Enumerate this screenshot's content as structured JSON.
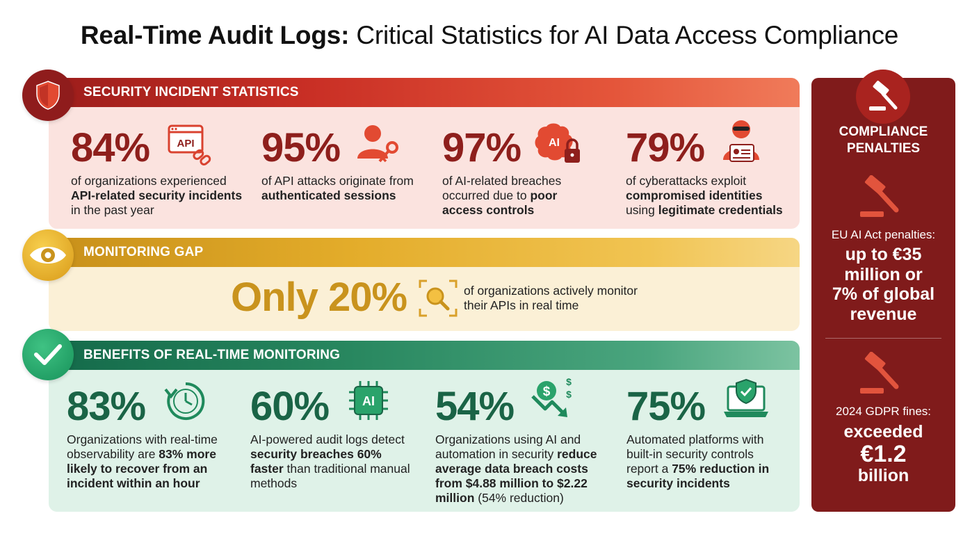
{
  "title": {
    "bold": "Real-Time Audit Logs:",
    "rest": " Critical Statistics for AI Data Access Compliance"
  },
  "security": {
    "heading": "SECURITY INCIDENT STATISTICS",
    "stats": [
      {
        "value": "84%",
        "icon": "api-link-icon",
        "pre": "of organizations experienced ",
        "bold": "API-related security incidents",
        "post": " in the past year"
      },
      {
        "value": "95%",
        "icon": "user-key-icon",
        "pre": "of API attacks originate from ",
        "bold": "authenticated sessions",
        "post": ""
      },
      {
        "value": "97%",
        "icon": "ai-brain-lock-icon",
        "pre": "of AI-related breaches occurred due to ",
        "bold": "poor access controls",
        "post": ""
      },
      {
        "value": "79%",
        "icon": "hacker-id-card-icon",
        "pre": "of cyberattacks exploit ",
        "bold": "compromised identities",
        "post": " using ",
        "bold2": "legitimate credentials"
      }
    ]
  },
  "monitoring": {
    "heading": "MONITORING GAP",
    "value": "Only 20%",
    "icon": "magnify-focus-icon",
    "line1": "of organizations actively monitor",
    "line2": "their APIs in real time"
  },
  "benefits": {
    "heading": "BENEFITS OF REAL-TIME MONITORING",
    "stats": [
      {
        "value": "83%",
        "icon": "clock-refresh-icon",
        "pre": "Organizations with real-time observability are ",
        "bold": "83% more likely to recover from an incident within an hour",
        "post": ""
      },
      {
        "value": "60%",
        "icon": "ai-chip-icon",
        "pre": "AI-powered audit logs detect ",
        "bold": "security breaches 60% faster",
        "post": " than traditional manual methods"
      },
      {
        "value": "54%",
        "icon": "money-down-icon",
        "pre": "Organizations using AI and automation in security ",
        "bold": "reduce average data breach costs from $4.88 million to $2.22 million",
        "post": " (54% reduction)"
      },
      {
        "value": "75%",
        "icon": "laptop-shield-icon",
        "pre": "Automated platforms with built-in security controls report a ",
        "bold": "75% reduction in security incidents",
        "post": ""
      }
    ]
  },
  "penalties": {
    "heading_line1": "COMPLIANCE",
    "heading_line2": "PENALTIES",
    "eu_label": "EU AI Act penalties:",
    "eu_line1": "up to €35",
    "eu_line2": "million or",
    "eu_line3": "7% of global",
    "eu_line4": "revenue",
    "gdpr_label": "2024 GDPR fines:",
    "gdpr_line1": "exceeded",
    "gdpr_line2": "€1.2",
    "gdpr_line3": "billion"
  },
  "colors": {
    "security_accent": "#8e1f1c",
    "monitoring_accent": "#c9931d",
    "benefits_accent": "#1a6446",
    "penalties_panel": "#801b1b"
  }
}
